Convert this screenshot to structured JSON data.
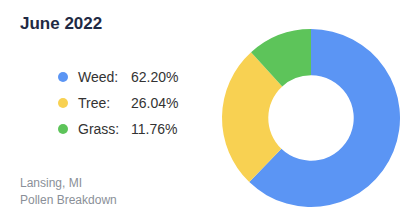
{
  "chart_data": {
    "type": "pie",
    "title": "June 2022",
    "categories": [
      "Weed:",
      "Tree:",
      "Grass:"
    ],
    "values": [
      62.2,
      26.04,
      11.76
    ],
    "value_labels": [
      "62.20%",
      "26.04%",
      "11.76%"
    ],
    "colors": [
      "#5b95f4",
      "#f8d152",
      "#5dc45a"
    ],
    "annotations": [
      "Lansing, MI",
      "Pollen Breakdown"
    ]
  }
}
